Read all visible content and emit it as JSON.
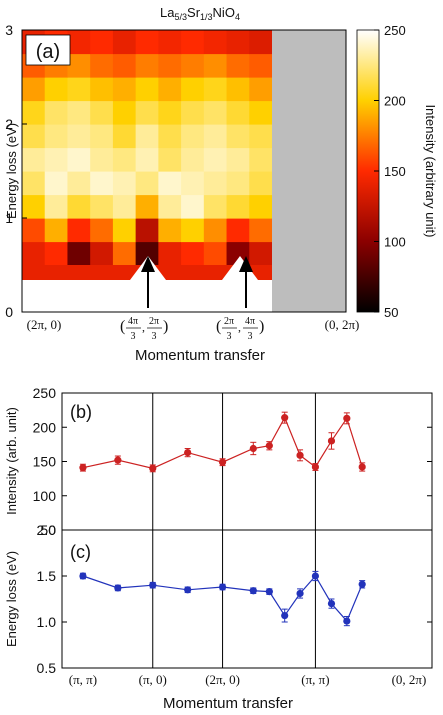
{
  "figure_title": "La5/3Sr1/3NiO4",
  "chart_data": [
    {
      "type": "heatmap",
      "panel_label": "(a)",
      "xlabel": "Momentum transfer",
      "ylabel": "Energy loss (eV)",
      "colorbar_label": "Intensity (arbitrary unit)",
      "ylim": [
        0,
        3
      ],
      "yticks": [
        "0",
        "1",
        "2",
        "3"
      ],
      "colorbar_ticks": [
        "50",
        "100",
        "150",
        "200",
        "250"
      ],
      "colorbar_range": [
        50,
        250
      ],
      "xtick_labels": [
        "(2π, 0)",
        "(4π/3, 2π/3)",
        "(2π/3, 4π/3)",
        "(0, 2π)"
      ],
      "y_bins": [
        0.5,
        0.75,
        1.0,
        1.25,
        1.5,
        1.75,
        2.0,
        2.25,
        2.5,
        2.75,
        3.0
      ],
      "intensity_grid": [
        [
          140,
          150,
          90,
          130,
          170,
          80,
          140,
          150,
          160,
          100,
          130
        ],
        [
          160,
          190,
          150,
          170,
          200,
          120,
          190,
          200,
          180,
          150,
          170
        ],
        [
          200,
          230,
          210,
          220,
          230,
          190,
          230,
          240,
          220,
          210,
          200
        ],
        [
          220,
          240,
          230,
          240,
          235,
          225,
          240,
          235,
          230,
          225,
          215
        ],
        [
          230,
          235,
          240,
          230,
          225,
          235,
          220,
          230,
          235,
          230,
          220
        ],
        [
          215,
          225,
          230,
          225,
          210,
          230,
          215,
          225,
          230,
          220,
          215
        ],
        [
          205,
          220,
          225,
          215,
          200,
          215,
          205,
          215,
          220,
          210,
          200
        ],
        [
          185,
          200,
          205,
          195,
          190,
          200,
          190,
          200,
          205,
          195,
          185
        ],
        [
          165,
          175,
          180,
          170,
          165,
          175,
          170,
          175,
          180,
          170,
          165
        ],
        [
          140,
          150,
          145,
          150,
          140,
          150,
          145,
          150,
          145,
          140,
          135
        ],
        [
          120,
          125,
          120,
          125,
          120,
          125,
          120,
          125,
          120,
          115,
          115
        ]
      ],
      "grey_region": "Momentum transfer > (2π/3, 4π/3) + 1 step",
      "arrows_at": [
        "(4π/3, 2π/3)",
        "(2π/3, 4π/3)"
      ],
      "colorscale": "black-red-yellow-white"
    },
    {
      "type": "scatter",
      "panel_label": "(b)",
      "ylabel": "Intensity (arb. unit)",
      "ylim": [
        50,
        250
      ],
      "yticks": [
        "50",
        "100",
        "150",
        "200",
        "250"
      ],
      "color": "#cc2222",
      "points": [
        {
          "x": 0.0,
          "y": 141,
          "err": 5
        },
        {
          "x": 0.5,
          "y": 152,
          "err": 6
        },
        {
          "x": 1.0,
          "y": 140,
          "err": 5
        },
        {
          "x": 1.5,
          "y": 163,
          "err": 6
        },
        {
          "x": 2.0,
          "y": 149,
          "err": 5
        },
        {
          "x": 2.44,
          "y": 169,
          "err": 9
        },
        {
          "x": 2.67,
          "y": 173,
          "err": 6
        },
        {
          "x": 2.89,
          "y": 214,
          "err": 8
        },
        {
          "x": 3.11,
          "y": 159,
          "err": 8
        },
        {
          "x": 3.33,
          "y": 142,
          "err": 5
        },
        {
          "x": 3.56,
          "y": 180,
          "err": 12
        },
        {
          "x": 3.78,
          "y": 213,
          "err": 8
        },
        {
          "x": 4.0,
          "y": 142,
          "err": 6
        }
      ]
    },
    {
      "type": "scatter",
      "panel_label": "(c)",
      "ylabel": "Energy loss (eV)",
      "xlabel": "Momentum transfer",
      "ylim": [
        0.5,
        2.0
      ],
      "yticks": [
        "0.5",
        "1.0",
        "1.5",
        "2.0"
      ],
      "xtick_labels": [
        "(π, π)",
        "(π, 0)",
        "(2π, 0)",
        "(π, π)",
        "(0, 2π)"
      ],
      "color": "#2233bb",
      "points": [
        {
          "x": 0.0,
          "y": 1.5,
          "err": 0.03
        },
        {
          "x": 0.5,
          "y": 1.37,
          "err": 0.03
        },
        {
          "x": 1.0,
          "y": 1.4,
          "err": 0.03
        },
        {
          "x": 1.5,
          "y": 1.35,
          "err": 0.03
        },
        {
          "x": 2.0,
          "y": 1.38,
          "err": 0.03
        },
        {
          "x": 2.44,
          "y": 1.34,
          "err": 0.03
        },
        {
          "x": 2.67,
          "y": 1.33,
          "err": 0.03
        },
        {
          "x": 2.89,
          "y": 1.07,
          "err": 0.07
        },
        {
          "x": 3.11,
          "y": 1.31,
          "err": 0.05
        },
        {
          "x": 3.33,
          "y": 1.5,
          "err": 0.05
        },
        {
          "x": 3.56,
          "y": 1.2,
          "err": 0.05
        },
        {
          "x": 3.78,
          "y": 1.01,
          "err": 0.05
        },
        {
          "x": 4.0,
          "y": 1.41,
          "err": 0.04
        }
      ]
    }
  ],
  "panel_bc": {
    "x_range": [
      -0.3,
      5.0
    ],
    "vlines_at": [
      1.0,
      2.0,
      3.33
    ],
    "xtick_positions": [
      0.0,
      1.0,
      2.0,
      3.33,
      4.67
    ]
  }
}
